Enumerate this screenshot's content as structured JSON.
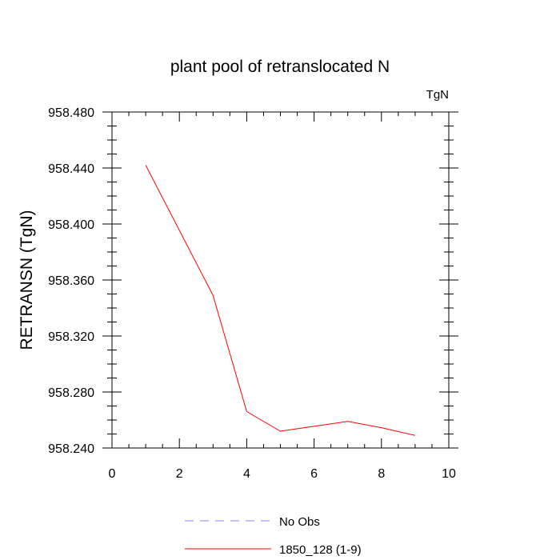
{
  "chart_data": {
    "type": "line",
    "title": "plant pool of retranslocated N",
    "units_label": "TgN",
    "ylabel": "RETRANSN  (TgN)",
    "xlabel": "",
    "xlim": [
      0,
      10
    ],
    "ylim": [
      958.24,
      958.48
    ],
    "x_ticks": [
      0,
      2,
      4,
      6,
      8,
      10
    ],
    "x_tick_labels": [
      "0",
      "2",
      "4",
      "6",
      "8",
      "10"
    ],
    "y_ticks": [
      958.24,
      958.28,
      958.32,
      958.36,
      958.4,
      958.44,
      958.48
    ],
    "y_tick_labels": [
      "958.240",
      "958.280",
      "958.320",
      "958.360",
      "958.400",
      "958.440",
      "958.480"
    ],
    "grid": false,
    "legend_placement": "bottom",
    "series": [
      {
        "name": "1850_128 (1-9)",
        "color": "#ff0000",
        "line_style": "solid",
        "x": [
          1,
          2,
          3,
          4,
          5,
          6,
          7,
          8,
          9
        ],
        "y": [
          958.442,
          958.3955,
          958.349,
          958.266,
          958.252,
          958.2555,
          958.259,
          958.2545,
          958.249
        ]
      }
    ],
    "legend": [
      {
        "label": "No Obs",
        "color": "#8080ff",
        "line_style": "dashed"
      },
      {
        "label": "1850_128 (1-9)",
        "color": "#ff0000",
        "line_style": "solid"
      }
    ]
  }
}
